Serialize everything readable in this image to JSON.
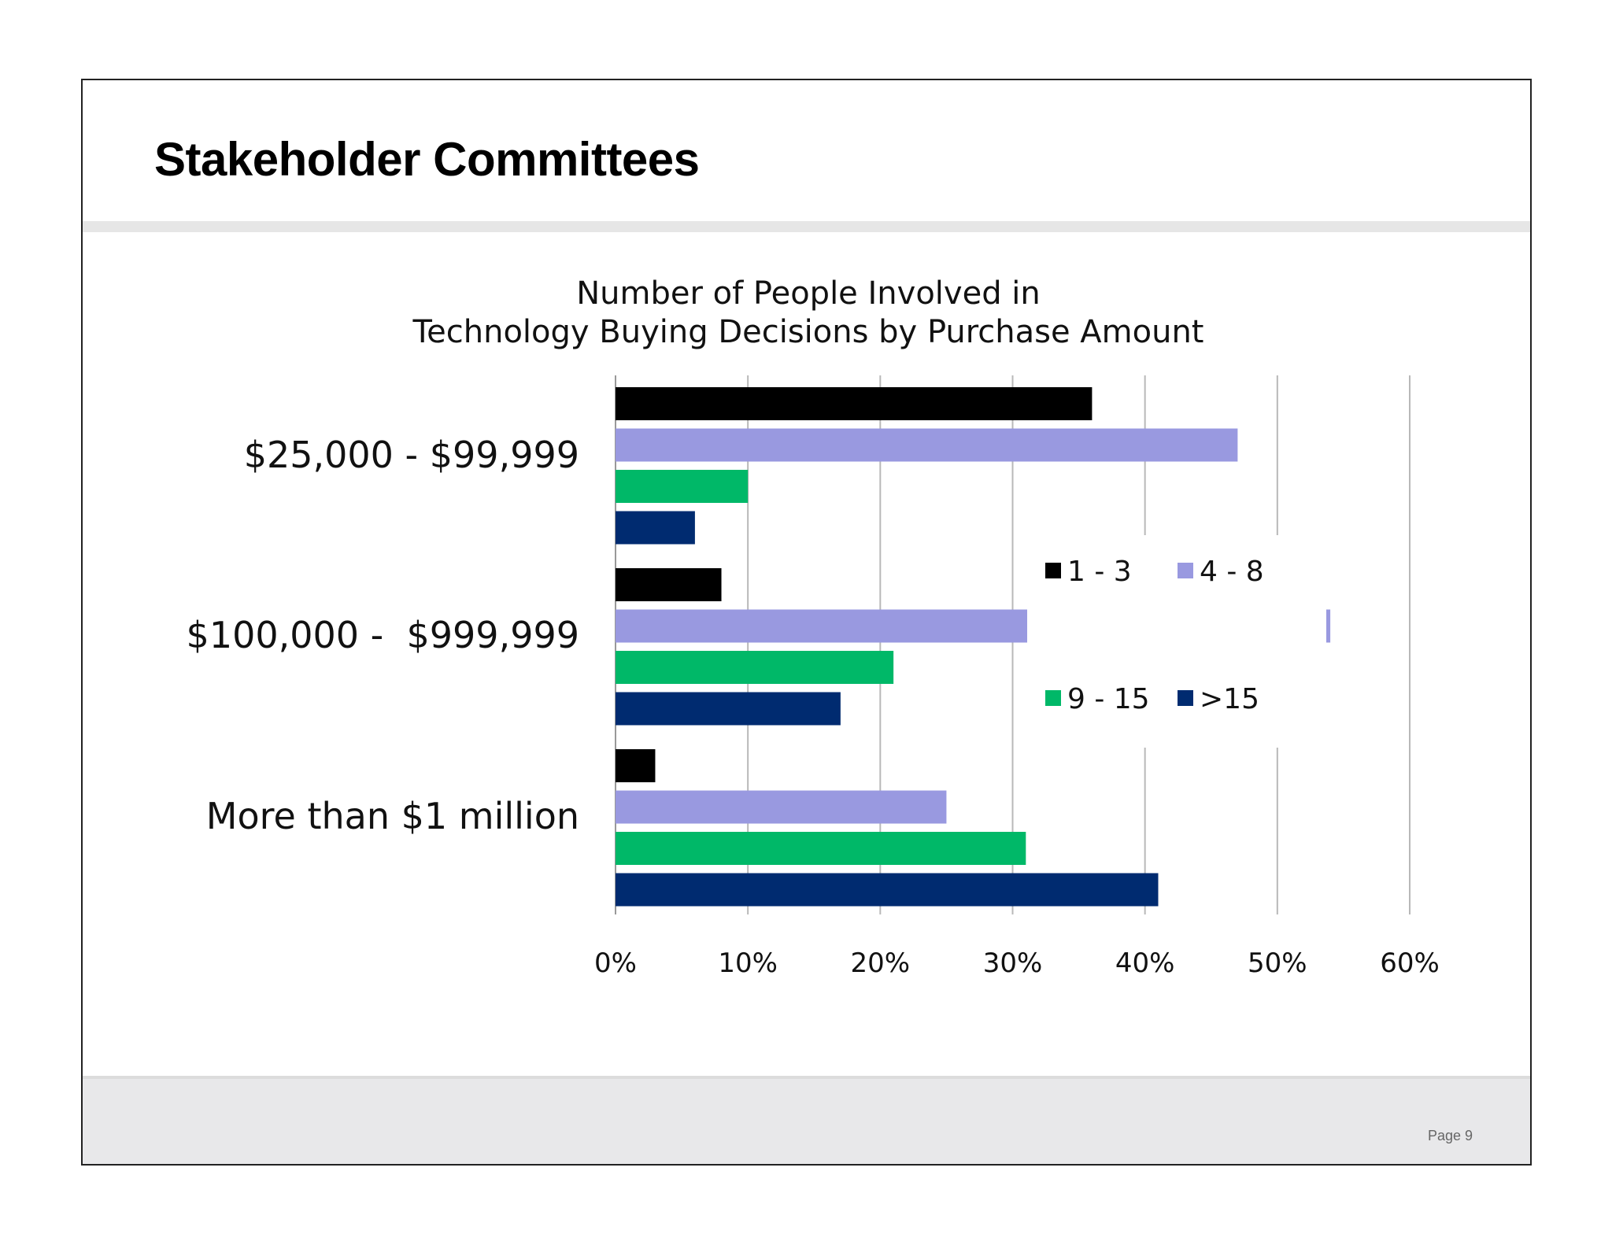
{
  "slide": {
    "title": "Stakeholder Committees",
    "page_label": "Page 9"
  },
  "chart_data": {
    "type": "bar",
    "orientation": "horizontal",
    "title": "Number of People Involved in\nTechnology Buying Decisions by Purchase Amount",
    "title_lines": [
      "Number of People Involved in",
      "Technology Buying Decisions by Purchase Amount"
    ],
    "categories": [
      "$25,000 - $99,999",
      "$100,000 -  $999,999",
      "More than $1 million"
    ],
    "series": [
      {
        "name": "1 - 3",
        "color": "#000000",
        "values": [
          36,
          8,
          3
        ]
      },
      {
        "name": "4 - 8",
        "color": "#9999e0",
        "values": [
          47,
          54,
          25
        ]
      },
      {
        "name": "9 - 15",
        "color": "#00b868",
        "values": [
          10,
          21,
          31
        ]
      },
      {
        "name": ">15",
        "color": "#002b70",
        "values": [
          6,
          17,
          41
        ]
      }
    ],
    "x_ticks": [
      "0%",
      "10%",
      "20%",
      "30%",
      "40%",
      "50%",
      "60%"
    ],
    "xlim": [
      0,
      60
    ],
    "unit": "%",
    "xlabel": "",
    "ylabel": "",
    "grid": true,
    "legend_position": "right-middle"
  }
}
